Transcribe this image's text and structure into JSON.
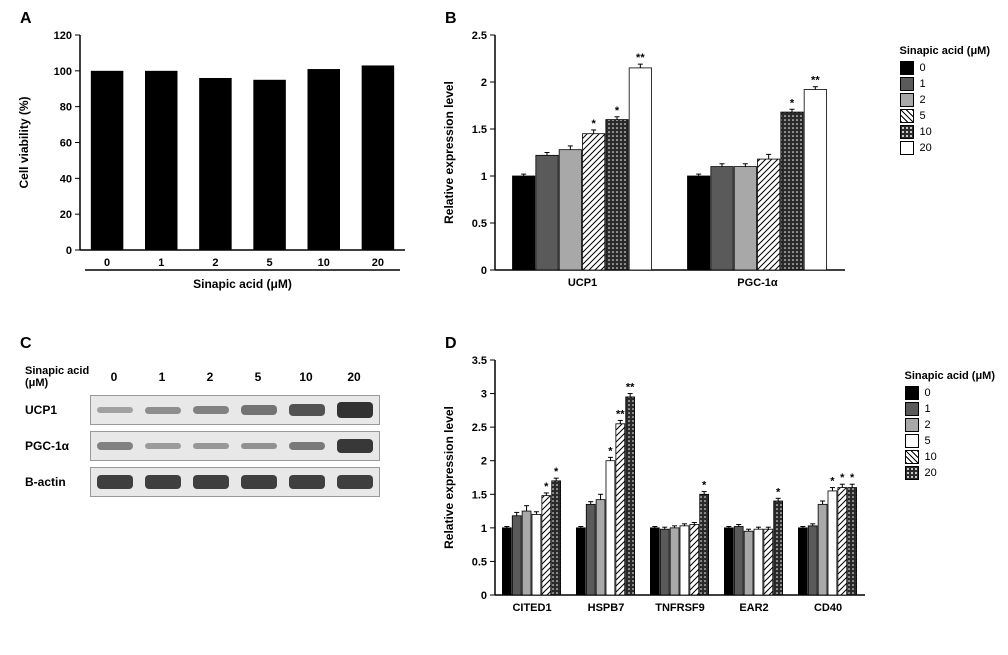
{
  "panelA": {
    "label": "A",
    "type": "bar",
    "title": "",
    "xlabel": "Sinapic acid (μM)",
    "ylabel": "Cell viability (%)",
    "categories": [
      "0",
      "1",
      "2",
      "5",
      "10",
      "20"
    ],
    "values": [
      100,
      100,
      96,
      95,
      101,
      103
    ],
    "bar_color": "#000000",
    "ylim": [
      0,
      120
    ],
    "ytick_step": 20,
    "xlabel_fontsize": 12,
    "ylabel_fontsize": 12,
    "tick_fontsize": 11,
    "bar_width": 0.6,
    "background_color": "#ffffff",
    "axis_color": "#000000"
  },
  "panelB": {
    "label": "B",
    "type": "grouped-bar",
    "ylabel": "Relative expression level",
    "groups": [
      "UCP1",
      "PGC-1α"
    ],
    "series": [
      {
        "name": "0",
        "color": "#000000",
        "pattern": "solid"
      },
      {
        "name": "1",
        "color": "#5a5a5a",
        "pattern": "solid"
      },
      {
        "name": "2",
        "color": "#a8a8a8",
        "pattern": "solid"
      },
      {
        "name": "5",
        "color": "#ffffff",
        "pattern": "diag"
      },
      {
        "name": "10",
        "color": "#2a2a2a",
        "pattern": "dots"
      },
      {
        "name": "20",
        "color": "#ffffff",
        "pattern": "solid"
      }
    ],
    "values": {
      "UCP1": [
        1.0,
        1.22,
        1.28,
        1.45,
        1.6,
        2.15
      ],
      "PGC-1α": [
        1.0,
        1.1,
        1.1,
        1.18,
        1.68,
        1.92
      ]
    },
    "errors": {
      "UCP1": [
        0.02,
        0.03,
        0.04,
        0.04,
        0.03,
        0.04
      ],
      "PGC-1α": [
        0.02,
        0.03,
        0.03,
        0.05,
        0.03,
        0.03
      ]
    },
    "significance": {
      "UCP1": [
        "",
        "",
        "",
        "*",
        "*",
        "**"
      ],
      "PGC-1α": [
        "",
        "",
        "",
        "",
        "*",
        "**"
      ]
    },
    "ylim": [
      0,
      2.5
    ],
    "ytick_step": 0.5,
    "legend_title": "Sinapic acid (μM)",
    "axis_color": "#000000"
  },
  "panelC": {
    "label": "C",
    "type": "western-blot",
    "header_label": "Sinapic acid (μM)",
    "lanes": [
      "0",
      "1",
      "2",
      "5",
      "10",
      "20"
    ],
    "rows": [
      {
        "name": "UCP1",
        "intensities": [
          0.1,
          0.25,
          0.35,
          0.45,
          0.7,
          0.95
        ]
      },
      {
        "name": "PGC-1α",
        "intensities": [
          0.35,
          0.15,
          0.18,
          0.22,
          0.4,
          0.9
        ]
      },
      {
        "name": "B-actin",
        "intensities": [
          0.85,
          0.85,
          0.85,
          0.85,
          0.85,
          0.85
        ]
      }
    ],
    "band_color": "#2a2a2a",
    "background_color": "#e8e8e8"
  },
  "panelD": {
    "label": "D",
    "type": "grouped-bar",
    "ylabel": "Relative expression level",
    "groups": [
      "CITED1",
      "HSPB7",
      "TNFRSF9",
      "EAR2",
      "CD40"
    ],
    "series": [
      {
        "name": "0",
        "color": "#000000",
        "pattern": "solid"
      },
      {
        "name": "1",
        "color": "#5a5a5a",
        "pattern": "solid"
      },
      {
        "name": "2",
        "color": "#a8a8a8",
        "pattern": "solid"
      },
      {
        "name": "5",
        "color": "#ffffff",
        "pattern": "solid"
      },
      {
        "name": "10",
        "color": "#ffffff",
        "pattern": "diag"
      },
      {
        "name": "20",
        "color": "#2a2a2a",
        "pattern": "dots"
      }
    ],
    "values": {
      "CITED1": [
        1.0,
        1.18,
        1.25,
        1.2,
        1.48,
        1.7
      ],
      "HSPB7": [
        1.0,
        1.35,
        1.42,
        2.0,
        2.55,
        2.95
      ],
      "TNFRSF9": [
        1.0,
        0.98,
        1.0,
        1.03,
        1.05,
        1.5
      ],
      "EAR2": [
        1.0,
        1.02,
        0.95,
        0.98,
        0.98,
        1.4
      ],
      "CD40": [
        1.0,
        1.03,
        1.35,
        1.55,
        1.6,
        1.6
      ]
    },
    "errors": {
      "CITED1": [
        0.02,
        0.05,
        0.08,
        0.04,
        0.04,
        0.04
      ],
      "HSPB7": [
        0.02,
        0.04,
        0.08,
        0.05,
        0.05,
        0.05
      ],
      "TNFRSF9": [
        0.02,
        0.03,
        0.03,
        0.03,
        0.03,
        0.04
      ],
      "EAR2": [
        0.02,
        0.03,
        0.03,
        0.03,
        0.03,
        0.04
      ],
      "CD40": [
        0.02,
        0.03,
        0.05,
        0.05,
        0.05,
        0.05
      ]
    },
    "significance": {
      "CITED1": [
        "",
        "",
        "",
        "",
        "*",
        "*"
      ],
      "HSPB7": [
        "",
        "",
        "",
        "*",
        "**",
        "**"
      ],
      "TNFRSF9": [
        "",
        "",
        "",
        "",
        "",
        "*"
      ],
      "EAR2": [
        "",
        "",
        "",
        "",
        "",
        "*"
      ],
      "CD40": [
        "",
        "",
        "",
        "*",
        "*",
        "*"
      ]
    },
    "ylim": [
      0,
      3.5
    ],
    "ytick_step": 0.5,
    "legend_title": "Sinapic acid (μM)",
    "axis_color": "#000000"
  }
}
